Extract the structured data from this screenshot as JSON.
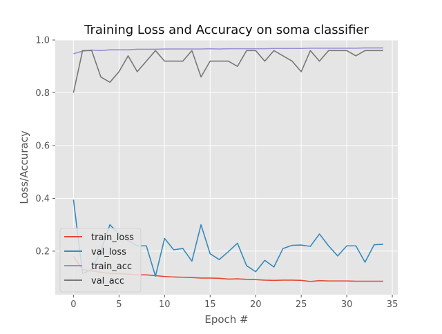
{
  "chart_data": {
    "type": "line",
    "title": "Training Loss and Accuracy on soma classifier",
    "xlabel": "Epoch #",
    "ylabel": "Loss/Accuracy",
    "xlim": [
      -2,
      35.6
    ],
    "ylim": [
      0.035,
      1.0
    ],
    "x_ticks": [
      0,
      5,
      10,
      15,
      20,
      25,
      30,
      35
    ],
    "y_ticks": [
      0.2,
      0.4,
      0.6,
      0.8,
      1.0
    ],
    "x_tick_labels": [
      "0",
      "5",
      "10",
      "15",
      "20",
      "25",
      "30",
      "35"
    ],
    "y_tick_labels": [
      "0.2",
      "0.4",
      "0.6",
      "0.8",
      "1.0"
    ],
    "grid": true,
    "legend_position": "lower-left",
    "style": {
      "background": "#e5e5e5",
      "grid_color": "#ffffff",
      "tick_color": "#555555",
      "text_color": "#222222"
    },
    "x": [
      0,
      1,
      2,
      3,
      4,
      5,
      6,
      7,
      8,
      9,
      10,
      11,
      12,
      13,
      14,
      15,
      16,
      17,
      18,
      19,
      20,
      21,
      22,
      23,
      24,
      25,
      26,
      27,
      28,
      29,
      30,
      31,
      32,
      33,
      34
    ],
    "series": [
      {
        "name": "train_loss",
        "color": "#e24a33",
        "values": [
          0.18,
          0.13,
          0.125,
          0.12,
          0.115,
          0.115,
          0.113,
          0.11,
          0.11,
          0.107,
          0.104,
          0.102,
          0.101,
          0.1,
          0.098,
          0.098,
          0.097,
          0.094,
          0.095,
          0.093,
          0.092,
          0.09,
          0.089,
          0.09,
          0.09,
          0.089,
          0.085,
          0.088,
          0.087,
          0.087,
          0.087,
          0.086,
          0.086,
          0.086,
          0.086
        ]
      },
      {
        "name": "val_loss",
        "color": "#348abd",
        "values": [
          0.395,
          0.115,
          0.13,
          0.2,
          0.3,
          0.265,
          0.24,
          0.22,
          0.22,
          0.105,
          0.248,
          0.205,
          0.21,
          0.162,
          0.3,
          0.19,
          0.168,
          0.198,
          0.23,
          0.145,
          0.122,
          0.165,
          0.14,
          0.21,
          0.222,
          0.223,
          0.218,
          0.265,
          0.22,
          0.182,
          0.22,
          0.22,
          0.158,
          0.224,
          0.226
        ]
      },
      {
        "name": "train_acc",
        "color": "#988ed5",
        "values": [
          0.948,
          0.958,
          0.962,
          0.96,
          0.963,
          0.963,
          0.963,
          0.965,
          0.965,
          0.965,
          0.966,
          0.966,
          0.966,
          0.966,
          0.966,
          0.967,
          0.966,
          0.967,
          0.967,
          0.967,
          0.967,
          0.967,
          0.968,
          0.968,
          0.968,
          0.968,
          0.969,
          0.969,
          0.969,
          0.969,
          0.969,
          0.969,
          0.97,
          0.97,
          0.97
        ]
      },
      {
        "name": "val_acc",
        "color": "#777777",
        "values": [
          0.8,
          0.96,
          0.96,
          0.86,
          0.84,
          0.88,
          0.94,
          0.88,
          0.92,
          0.96,
          0.92,
          0.92,
          0.92,
          0.96,
          0.86,
          0.92,
          0.92,
          0.92,
          0.9,
          0.96,
          0.96,
          0.92,
          0.96,
          0.94,
          0.92,
          0.88,
          0.96,
          0.92,
          0.96,
          0.96,
          0.96,
          0.94,
          0.96,
          0.96,
          0.96
        ]
      }
    ]
  }
}
